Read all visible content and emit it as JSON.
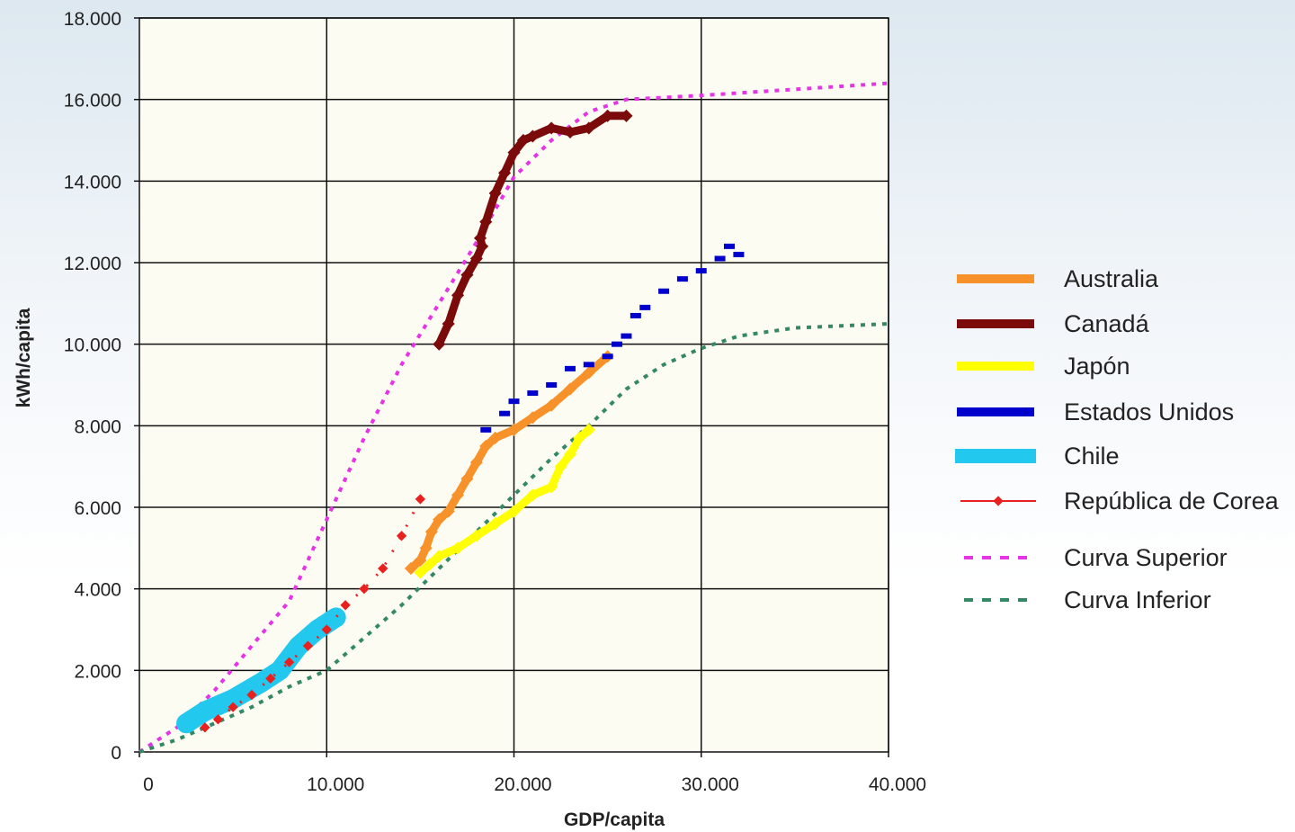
{
  "chart_data": {
    "type": "line",
    "title": "",
    "xlabel": "GDP/capita",
    "ylabel": "kWh/capita",
    "xlim": [
      0,
      40000
    ],
    "ylim": [
      0,
      18000
    ],
    "x_ticks": [
      0,
      10000,
      20000,
      30000,
      40000
    ],
    "x_tick_labels": [
      "0",
      "10.000",
      "20.000",
      "30.000",
      "40.000"
    ],
    "y_ticks": [
      0,
      2000,
      4000,
      6000,
      8000,
      10000,
      12000,
      14000,
      16000,
      18000
    ],
    "y_tick_labels": [
      "0",
      "2.000",
      "4.000",
      "6.000",
      "8.000",
      "10.000",
      "12.000",
      "14.000",
      "16.000",
      "18.000"
    ],
    "grid": true,
    "legend_position": "right",
    "plot_background": "#fdfcf3",
    "series": [
      {
        "name": "Australia",
        "color": "#f7922a",
        "style": "thick-markers",
        "points": [
          [
            14500,
            4500
          ],
          [
            15000,
            4700
          ],
          [
            15300,
            5000
          ],
          [
            15600,
            5400
          ],
          [
            16000,
            5700
          ],
          [
            16500,
            5900
          ],
          [
            17000,
            6300
          ],
          [
            17500,
            6700
          ],
          [
            18000,
            7100
          ],
          [
            18500,
            7500
          ],
          [
            19000,
            7700
          ],
          [
            20000,
            7900
          ],
          [
            21000,
            8200
          ],
          [
            22000,
            8500
          ],
          [
            23000,
            8900
          ],
          [
            24000,
            9300
          ],
          [
            25000,
            9700
          ]
        ]
      },
      {
        "name": "Canadá",
        "color": "#7b0a0a",
        "style": "thick-markers",
        "points": [
          [
            16000,
            10000
          ],
          [
            16500,
            10500
          ],
          [
            17000,
            11200
          ],
          [
            17500,
            11700
          ],
          [
            18000,
            12100
          ],
          [
            18300,
            12400
          ],
          [
            18200,
            12600
          ],
          [
            18500,
            13000
          ],
          [
            19000,
            13700
          ],
          [
            19500,
            14200
          ],
          [
            20000,
            14700
          ],
          [
            20500,
            15000
          ],
          [
            21000,
            15100
          ],
          [
            22000,
            15300
          ],
          [
            23000,
            15200
          ],
          [
            24000,
            15300
          ],
          [
            25000,
            15600
          ],
          [
            26000,
            15600
          ]
        ]
      },
      {
        "name": "Japón",
        "color": "#ffff00",
        "style": "thick-markers",
        "points": [
          [
            15000,
            4400
          ],
          [
            15500,
            4600
          ],
          [
            16000,
            4800
          ],
          [
            17000,
            5000
          ],
          [
            18000,
            5300
          ],
          [
            19000,
            5600
          ],
          [
            20000,
            5900
          ],
          [
            21000,
            6300
          ],
          [
            22000,
            6500
          ],
          [
            22500,
            7000
          ],
          [
            23000,
            7300
          ],
          [
            23500,
            7700
          ],
          [
            24000,
            7900
          ]
        ]
      },
      {
        "name": "Estados Unidos",
        "color": "#0000cc",
        "style": "dash-markers",
        "points": [
          [
            18500,
            7900
          ],
          [
            19500,
            8300
          ],
          [
            20000,
            8600
          ],
          [
            21000,
            8800
          ],
          [
            22000,
            9000
          ],
          [
            23000,
            9400
          ],
          [
            24000,
            9500
          ],
          [
            25000,
            9700
          ],
          [
            25500,
            10000
          ],
          [
            26000,
            10200
          ],
          [
            26500,
            10700
          ],
          [
            27000,
            10900
          ],
          [
            28000,
            11300
          ],
          [
            29000,
            11600
          ],
          [
            30000,
            11800
          ],
          [
            31000,
            12100
          ],
          [
            31500,
            12400
          ],
          [
            32000,
            12200
          ]
        ]
      },
      {
        "name": "Chile",
        "color": "#22c8ee",
        "style": "thick-band",
        "points": [
          [
            2500,
            700
          ],
          [
            3500,
            1000
          ],
          [
            5000,
            1300
          ],
          [
            6500,
            1700
          ],
          [
            7500,
            2000
          ],
          [
            8500,
            2600
          ],
          [
            9500,
            3000
          ],
          [
            10500,
            3300
          ]
        ]
      },
      {
        "name": "República de Corea",
        "color": "#e8201e",
        "style": "markers",
        "points": [
          [
            3500,
            600
          ],
          [
            4200,
            800
          ],
          [
            5000,
            1100
          ],
          [
            6000,
            1400
          ],
          [
            7000,
            1800
          ],
          [
            8000,
            2200
          ],
          [
            9000,
            2600
          ],
          [
            10000,
            3000
          ],
          [
            11000,
            3600
          ],
          [
            12000,
            4000
          ],
          [
            13000,
            4500
          ],
          [
            14000,
            5300
          ],
          [
            15000,
            6200
          ]
        ]
      },
      {
        "name": "Curva Superior",
        "color": "#e633e6",
        "style": "dotted",
        "points": [
          [
            0,
            0
          ],
          [
            2000,
            600
          ],
          [
            4000,
            1500
          ],
          [
            6000,
            2600
          ],
          [
            8000,
            3700
          ],
          [
            10000,
            5700
          ],
          [
            12000,
            7700
          ],
          [
            14000,
            9500
          ],
          [
            16000,
            11000
          ],
          [
            18000,
            12500
          ],
          [
            20000,
            14100
          ],
          [
            22000,
            15000
          ],
          [
            24000,
            15700
          ],
          [
            26000,
            16000
          ],
          [
            30000,
            16100
          ],
          [
            35000,
            16250
          ],
          [
            40000,
            16400
          ]
        ]
      },
      {
        "name": "Curva Inferior",
        "color": "#338866",
        "style": "dotted",
        "points": [
          [
            0,
            0
          ],
          [
            2000,
            300
          ],
          [
            4000,
            700
          ],
          [
            6000,
            1100
          ],
          [
            8000,
            1600
          ],
          [
            10000,
            2000
          ],
          [
            12000,
            2800
          ],
          [
            14000,
            3600
          ],
          [
            16000,
            4500
          ],
          [
            18000,
            5400
          ],
          [
            20000,
            6300
          ],
          [
            22000,
            7200
          ],
          [
            24000,
            8000
          ],
          [
            26000,
            8900
          ],
          [
            28000,
            9500
          ],
          [
            30000,
            9900
          ],
          [
            32000,
            10200
          ],
          [
            35000,
            10400
          ],
          [
            40000,
            10500
          ]
        ]
      }
    ]
  }
}
